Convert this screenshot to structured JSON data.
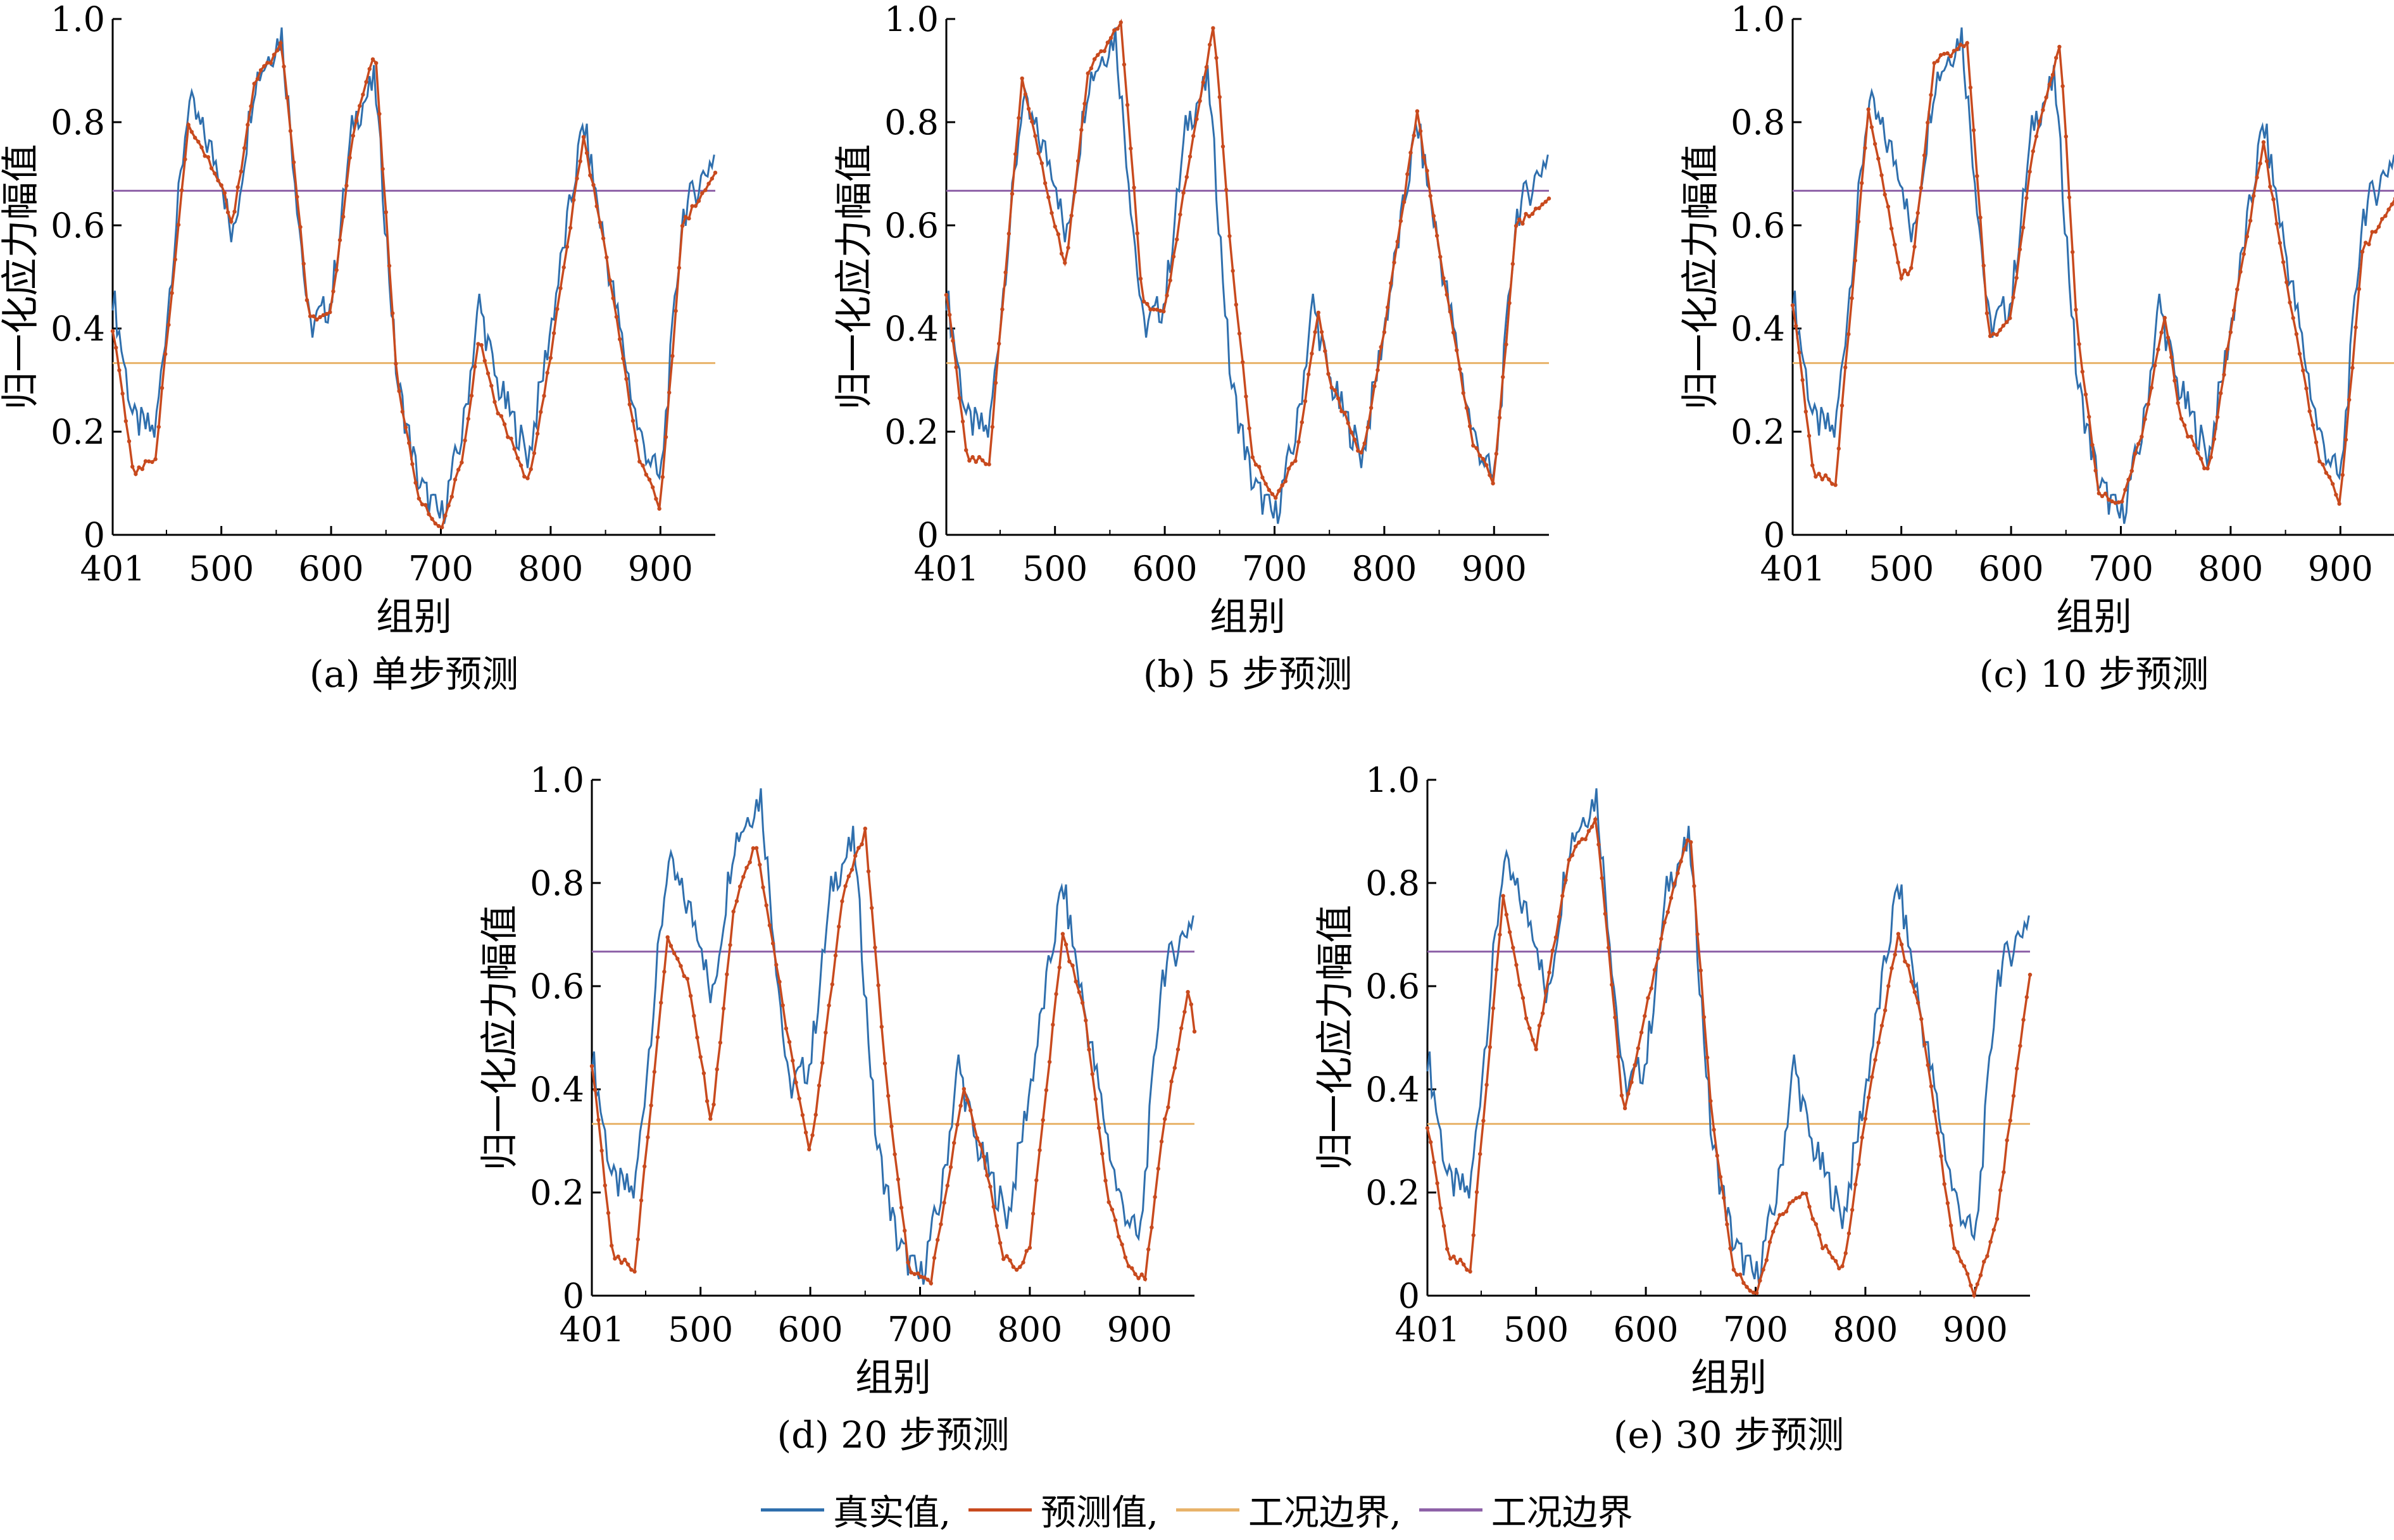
{
  "colors": {
    "actual": "#2f6fad",
    "predicted": "#c84a1e",
    "boundary_low": "#e8b36a",
    "boundary_high": "#8e62a8",
    "axis": "#000000"
  },
  "legend": {
    "items": [
      {
        "label": "真实值,",
        "color": "#2f6fad"
      },
      {
        "label": "预测值,",
        "color": "#c84a1e"
      },
      {
        "label": "工况边界,",
        "color": "#e8b36a"
      },
      {
        "label": "工况边界",
        "color": "#8e62a8"
      }
    ]
  },
  "chart_data": [
    {
      "type": "line",
      "caption": "(a)  单步预测",
      "xlabel": "组别",
      "ylabel": "归一化应力幅值",
      "xlim": [
        401,
        950
      ],
      "ylim": [
        0,
        1.0
      ],
      "xticks": [
        401,
        500,
        600,
        700,
        800,
        900
      ],
      "yticks": [
        0,
        0.2,
        0.4,
        0.6,
        0.8,
        1.0
      ],
      "ytick_labels": [
        "0",
        "0.2",
        "0.4",
        "0.6",
        "0.8",
        "1.0"
      ],
      "boundaries": [
        0.333,
        0.667
      ],
      "series": [
        {
          "name": "真实值",
          "x": [
            401,
            420,
            440,
            470,
            500,
            510,
            530,
            555,
            580,
            600,
            620,
            640,
            660,
            680,
            700,
            720,
            735,
            750,
            770,
            780,
            800,
            830,
            850,
            880,
            900,
            920,
            950
          ],
          "y": [
            0.47,
            0.22,
            0.2,
            0.84,
            0.7,
            0.56,
            0.88,
            0.97,
            0.4,
            0.45,
            0.8,
            0.88,
            0.3,
            0.1,
            0.03,
            0.2,
            0.45,
            0.3,
            0.2,
            0.15,
            0.4,
            0.8,
            0.55,
            0.2,
            0.1,
            0.62,
            0.74
          ]
        },
        {
          "name": "预测值",
          "x": [
            401,
            420,
            440,
            470,
            500,
            510,
            530,
            555,
            580,
            600,
            620,
            640,
            660,
            680,
            700,
            720,
            735,
            750,
            770,
            780,
            800,
            830,
            850,
            880,
            900,
            920,
            950
          ],
          "y": [
            0.4,
            0.12,
            0.15,
            0.8,
            0.68,
            0.6,
            0.88,
            0.95,
            0.42,
            0.43,
            0.78,
            0.94,
            0.3,
            0.07,
            0.01,
            0.15,
            0.38,
            0.25,
            0.15,
            0.1,
            0.35,
            0.77,
            0.55,
            0.15,
            0.05,
            0.6,
            0.7
          ]
        }
      ]
    },
    {
      "type": "line",
      "caption": "(b)  5 步预测",
      "xlabel": "组别",
      "ylabel": "归一化应力幅值",
      "xlim": [
        401,
        950
      ],
      "ylim": [
        0,
        1.0
      ],
      "xticks": [
        401,
        500,
        600,
        700,
        800,
        900
      ],
      "yticks": [
        0,
        0.2,
        0.4,
        0.6,
        0.8,
        1.0
      ],
      "ytick_labels": [
        "0",
        "0.2",
        "0.4",
        "0.6",
        "0.8",
        "1.0"
      ],
      "boundaries": [
        0.333,
        0.667
      ],
      "series": [
        {
          "name": "真实值",
          "x": [
            401,
            420,
            440,
            470,
            500,
            510,
            530,
            555,
            580,
            600,
            620,
            640,
            660,
            680,
            700,
            720,
            735,
            750,
            770,
            780,
            800,
            830,
            850,
            880,
            900,
            920,
            950
          ],
          "y": [
            0.47,
            0.22,
            0.2,
            0.84,
            0.7,
            0.56,
            0.88,
            0.97,
            0.4,
            0.45,
            0.8,
            0.88,
            0.3,
            0.1,
            0.03,
            0.2,
            0.45,
            0.3,
            0.2,
            0.15,
            0.4,
            0.8,
            0.55,
            0.2,
            0.1,
            0.62,
            0.74
          ]
        },
        {
          "name": "预测值",
          "x": [
            401,
            420,
            440,
            470,
            500,
            510,
            530,
            560,
            580,
            600,
            620,
            645,
            660,
            680,
            700,
            720,
            740,
            750,
            770,
            780,
            800,
            830,
            850,
            880,
            900,
            920,
            950
          ],
          "y": [
            0.47,
            0.15,
            0.14,
            0.89,
            0.6,
            0.52,
            0.9,
            0.99,
            0.45,
            0.43,
            0.7,
            0.99,
            0.55,
            0.15,
            0.07,
            0.15,
            0.43,
            0.3,
            0.2,
            0.15,
            0.4,
            0.82,
            0.55,
            0.18,
            0.1,
            0.6,
            0.65
          ]
        }
      ]
    },
    {
      "type": "line",
      "caption": "(c)  10 步预测",
      "xlabel": "组别",
      "ylabel": "归一化应力幅值",
      "xlim": [
        401,
        950
      ],
      "ylim": [
        0,
        1.0
      ],
      "xticks": [
        401,
        500,
        600,
        700,
        800,
        900
      ],
      "yticks": [
        0,
        0.2,
        0.4,
        0.6,
        0.8,
        1.0
      ],
      "ytick_labels": [
        "0",
        "0.2",
        "0.4",
        "0.6",
        "0.8",
        "1.0"
      ],
      "boundaries": [
        0.333,
        0.667
      ],
      "series": [
        {
          "name": "真实值",
          "x": [
            401,
            420,
            440,
            470,
            500,
            510,
            530,
            555,
            580,
            600,
            620,
            640,
            660,
            680,
            700,
            720,
            735,
            750,
            770,
            780,
            800,
            830,
            850,
            880,
            900,
            920,
            950
          ],
          "y": [
            0.47,
            0.22,
            0.2,
            0.84,
            0.7,
            0.56,
            0.88,
            0.97,
            0.4,
            0.45,
            0.8,
            0.88,
            0.3,
            0.1,
            0.03,
            0.2,
            0.45,
            0.3,
            0.2,
            0.15,
            0.4,
            0.8,
            0.55,
            0.2,
            0.1,
            0.62,
            0.74
          ]
        },
        {
          "name": "预测值",
          "x": [
            401,
            420,
            440,
            470,
            500,
            510,
            530,
            560,
            580,
            600,
            620,
            645,
            660,
            680,
            700,
            720,
            740,
            755,
            770,
            780,
            800,
            830,
            850,
            880,
            900,
            920,
            950
          ],
          "y": [
            0.45,
            0.12,
            0.1,
            0.83,
            0.5,
            0.52,
            0.92,
            0.95,
            0.38,
            0.42,
            0.75,
            0.95,
            0.4,
            0.08,
            0.06,
            0.2,
            0.42,
            0.22,
            0.16,
            0.12,
            0.4,
            0.76,
            0.5,
            0.15,
            0.06,
            0.55,
            0.65
          ]
        }
      ]
    },
    {
      "type": "line",
      "caption": "(d)  20 步预测",
      "xlabel": "组别",
      "ylabel": "归一化应力幅值",
      "xlim": [
        401,
        950
      ],
      "ylim": [
        0,
        1.0
      ],
      "xticks": [
        401,
        500,
        600,
        700,
        800,
        900
      ],
      "yticks": [
        0,
        0.2,
        0.4,
        0.6,
        0.8,
        1.0
      ],
      "ytick_labels": [
        "0",
        "0.2",
        "0.4",
        "0.6",
        "0.8",
        "1.0"
      ],
      "boundaries": [
        0.333,
        0.667
      ],
      "series": [
        {
          "name": "真实值",
          "x": [
            401,
            420,
            440,
            470,
            500,
            510,
            530,
            555,
            580,
            600,
            620,
            640,
            660,
            680,
            700,
            720,
            735,
            750,
            770,
            780,
            800,
            830,
            850,
            880,
            900,
            920,
            950
          ],
          "y": [
            0.47,
            0.22,
            0.2,
            0.84,
            0.7,
            0.56,
            0.88,
            0.97,
            0.4,
            0.45,
            0.8,
            0.88,
            0.3,
            0.1,
            0.03,
            0.2,
            0.45,
            0.3,
            0.2,
            0.15,
            0.4,
            0.8,
            0.55,
            0.2,
            0.1,
            0.62,
            0.74
          ]
        },
        {
          "name": "预测值",
          "x": [
            401,
            420,
            440,
            470,
            490,
            510,
            530,
            550,
            580,
            600,
            630,
            650,
            670,
            690,
            710,
            740,
            760,
            775,
            790,
            800,
            830,
            850,
            870,
            890,
            905,
            920,
            945,
            950
          ],
          "y": [
            0.45,
            0.08,
            0.05,
            0.7,
            0.6,
            0.33,
            0.75,
            0.88,
            0.5,
            0.27,
            0.78,
            0.9,
            0.4,
            0.05,
            0.03,
            0.4,
            0.25,
            0.08,
            0.05,
            0.1,
            0.7,
            0.55,
            0.2,
            0.05,
            0.03,
            0.3,
            0.6,
            0.51
          ]
        }
      ]
    },
    {
      "type": "line",
      "caption": "(e)  30 步预测",
      "xlabel": "组别",
      "ylabel": "归一化应力幅值",
      "xlim": [
        401,
        950
      ],
      "ylim": [
        0,
        1.0
      ],
      "xticks": [
        401,
        500,
        600,
        700,
        800,
        900
      ],
      "yticks": [
        0,
        0.2,
        0.4,
        0.6,
        0.8,
        1.0
      ],
      "ytick_labels": [
        "0",
        "0.2",
        "0.4",
        "0.6",
        "0.8",
        "1.0"
      ],
      "boundaries": [
        0.333,
        0.667
      ],
      "series": [
        {
          "name": "真实值",
          "x": [
            401,
            420,
            440,
            470,
            500,
            510,
            530,
            555,
            580,
            600,
            620,
            640,
            660,
            680,
            700,
            720,
            735,
            750,
            770,
            780,
            800,
            830,
            850,
            880,
            900,
            920,
            950
          ],
          "y": [
            0.47,
            0.22,
            0.2,
            0.84,
            0.7,
            0.56,
            0.88,
            0.97,
            0.4,
            0.45,
            0.8,
            0.88,
            0.3,
            0.1,
            0.03,
            0.2,
            0.45,
            0.3,
            0.2,
            0.15,
            0.4,
            0.8,
            0.55,
            0.2,
            0.1,
            0.62,
            0.74
          ]
        },
        {
          "name": "预测值",
          "x": [
            401,
            420,
            440,
            470,
            490,
            500,
            530,
            555,
            580,
            600,
            620,
            640,
            660,
            680,
            700,
            720,
            745,
            760,
            780,
            800,
            830,
            850,
            880,
            900,
            920,
            945,
            950
          ],
          "y": [
            0.33,
            0.08,
            0.05,
            0.78,
            0.55,
            0.48,
            0.85,
            0.92,
            0.35,
            0.55,
            0.75,
            0.9,
            0.35,
            0.05,
            0.0,
            0.15,
            0.2,
            0.1,
            0.05,
            0.35,
            0.7,
            0.55,
            0.1,
            0.0,
            0.15,
            0.55,
            0.62
          ]
        }
      ]
    }
  ]
}
